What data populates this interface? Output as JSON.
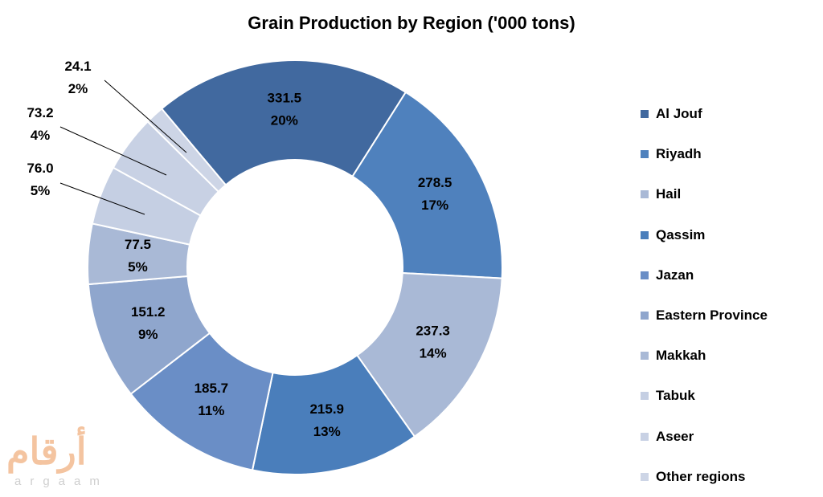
{
  "chart_data": {
    "type": "pie",
    "style": "donut",
    "title": "Grain Production by Region ('000 tons)",
    "categories": [
      "Al Jouf",
      "Riyadh",
      "Hail",
      "Qassim",
      "Jazan",
      "Eastern Province",
      "Makkah",
      "Tabuk",
      "Aseer",
      "Other regions"
    ],
    "values": [
      331.5,
      278.5,
      237.3,
      215.9,
      185.7,
      151.2,
      77.5,
      76.0,
      73.2,
      24.1
    ],
    "value_labels": [
      "331.5",
      "278.5",
      "237.3",
      "215.9",
      "185.7",
      "151.2",
      "77.5",
      "76.0",
      "73.2",
      "24.1"
    ],
    "percent_labels": [
      "20%",
      "17%",
      "14%",
      "13%",
      "11%",
      "9%",
      "5%",
      "5%",
      "4%",
      "2%"
    ],
    "colors": [
      "#41699f",
      "#4f81bd",
      "#a9b9d6",
      "#4a7ebb",
      "#6a8ec6",
      "#8fa6cd",
      "#a9b9d6",
      "#c5cfe3",
      "#c8d1e4",
      "#cdd5e6"
    ],
    "legend_position": "right"
  },
  "watermark": {
    "arabic": "أرقام",
    "latin": "argaam"
  }
}
